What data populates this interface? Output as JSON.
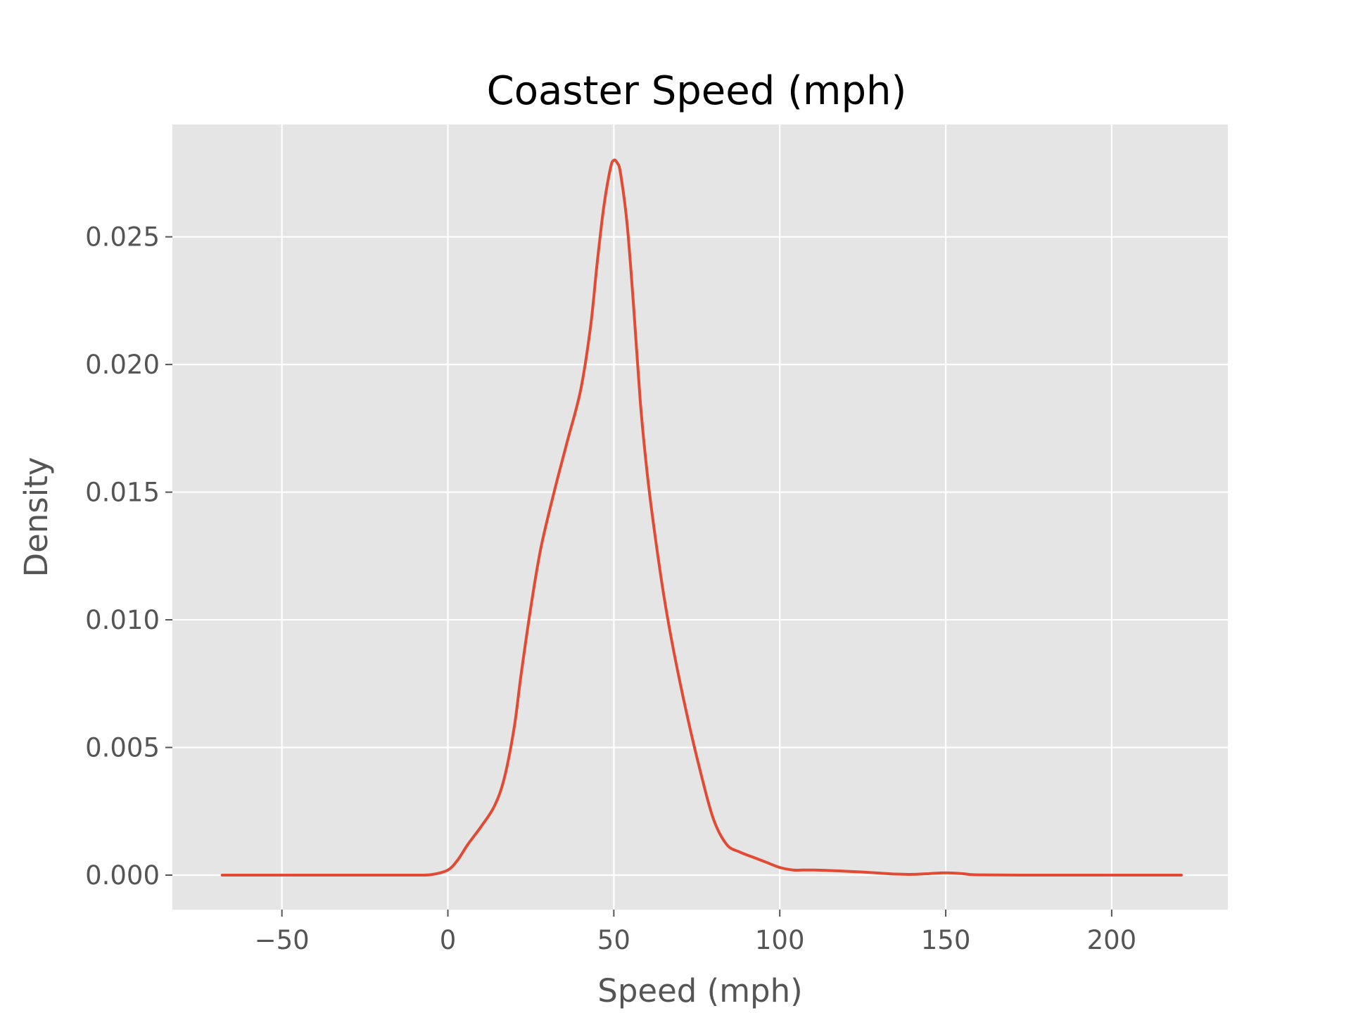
{
  "chart_data": {
    "type": "line",
    "title": "Coaster Speed (mph)",
    "xlabel": "Speed (mph)",
    "ylabel": "Density",
    "xlim": [
      -83,
      235
    ],
    "ylim": [
      -0.00135,
      0.0294
    ],
    "x_ticks": [
      {
        "value": -50,
        "label": "−50"
      },
      {
        "value": 0,
        "label": "0"
      },
      {
        "value": 50,
        "label": "50"
      },
      {
        "value": 100,
        "label": "100"
      },
      {
        "value": 150,
        "label": "150"
      },
      {
        "value": 200,
        "label": "200"
      }
    ],
    "y_ticks": [
      {
        "value": 0.0,
        "label": "0.000"
      },
      {
        "value": 0.005,
        "label": "0.005"
      },
      {
        "value": 0.01,
        "label": "0.010"
      },
      {
        "value": 0.015,
        "label": "0.015"
      },
      {
        "value": 0.02,
        "label": "0.020"
      },
      {
        "value": 0.025,
        "label": "0.025"
      }
    ],
    "grid": true,
    "colors": {
      "background": "#e5e5e5",
      "grid": "#ffffff",
      "line": "#e24a33",
      "tick": "#555555"
    },
    "series": [
      {
        "x": [
          -68,
          -40,
          -20,
          -10,
          -5,
          0,
          3,
          6,
          10,
          14,
          17,
          20,
          22,
          25,
          28,
          32,
          36,
          40,
          43,
          45,
          47,
          49,
          50,
          51,
          52,
          54,
          56,
          58,
          60,
          62,
          65,
          68,
          72,
          76,
          80,
          84,
          88,
          92,
          96,
          100,
          104,
          107,
          110,
          115,
          120,
          125,
          130,
          135,
          140,
          145,
          150,
          155,
          160,
          180,
          200,
          221
        ],
        "y": [
          0.0,
          0.0,
          0.0,
          0.0,
          2e-05,
          0.0002,
          0.0006,
          0.0012,
          0.0019,
          0.0027,
          0.0038,
          0.0058,
          0.0078,
          0.0105,
          0.0128,
          0.015,
          0.017,
          0.019,
          0.0215,
          0.024,
          0.0262,
          0.0277,
          0.028,
          0.0279,
          0.0275,
          0.0255,
          0.0222,
          0.0185,
          0.0158,
          0.0137,
          0.011,
          0.0088,
          0.0063,
          0.0041,
          0.0022,
          0.0012,
          0.0009,
          0.0007,
          0.0005,
          0.0003,
          0.0002,
          0.0002,
          0.0002,
          0.00018,
          0.00015,
          0.00012,
          8e-05,
          4e-05,
          3e-05,
          6e-05,
          9e-05,
          6e-05,
          1e-05,
          0.0,
          0.0,
          0.0
        ]
      }
    ]
  }
}
